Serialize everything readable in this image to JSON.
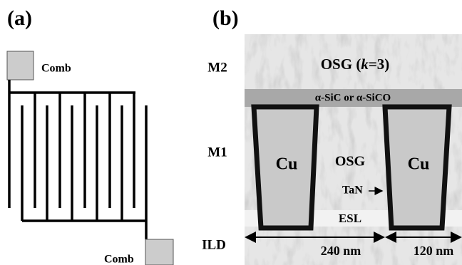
{
  "panel_a": {
    "label": "(a)",
    "pad_top_label": "Comb",
    "pad_bottom_label": "Comb"
  },
  "panel_b": {
    "label": "(b)",
    "layers": {
      "m2": "M2",
      "m1": "M1",
      "ild": "ILD"
    },
    "osg_top_parts": [
      "OSG (",
      "k",
      "=3)"
    ],
    "cap_layer": "α-SiC or α-SiCO",
    "cu_left": "Cu",
    "osg_mid": "OSG",
    "cu_right": "Cu",
    "liner": "TaN",
    "esl": "ESL",
    "width_left": "240 nm",
    "width_right": "120 nm"
  }
}
